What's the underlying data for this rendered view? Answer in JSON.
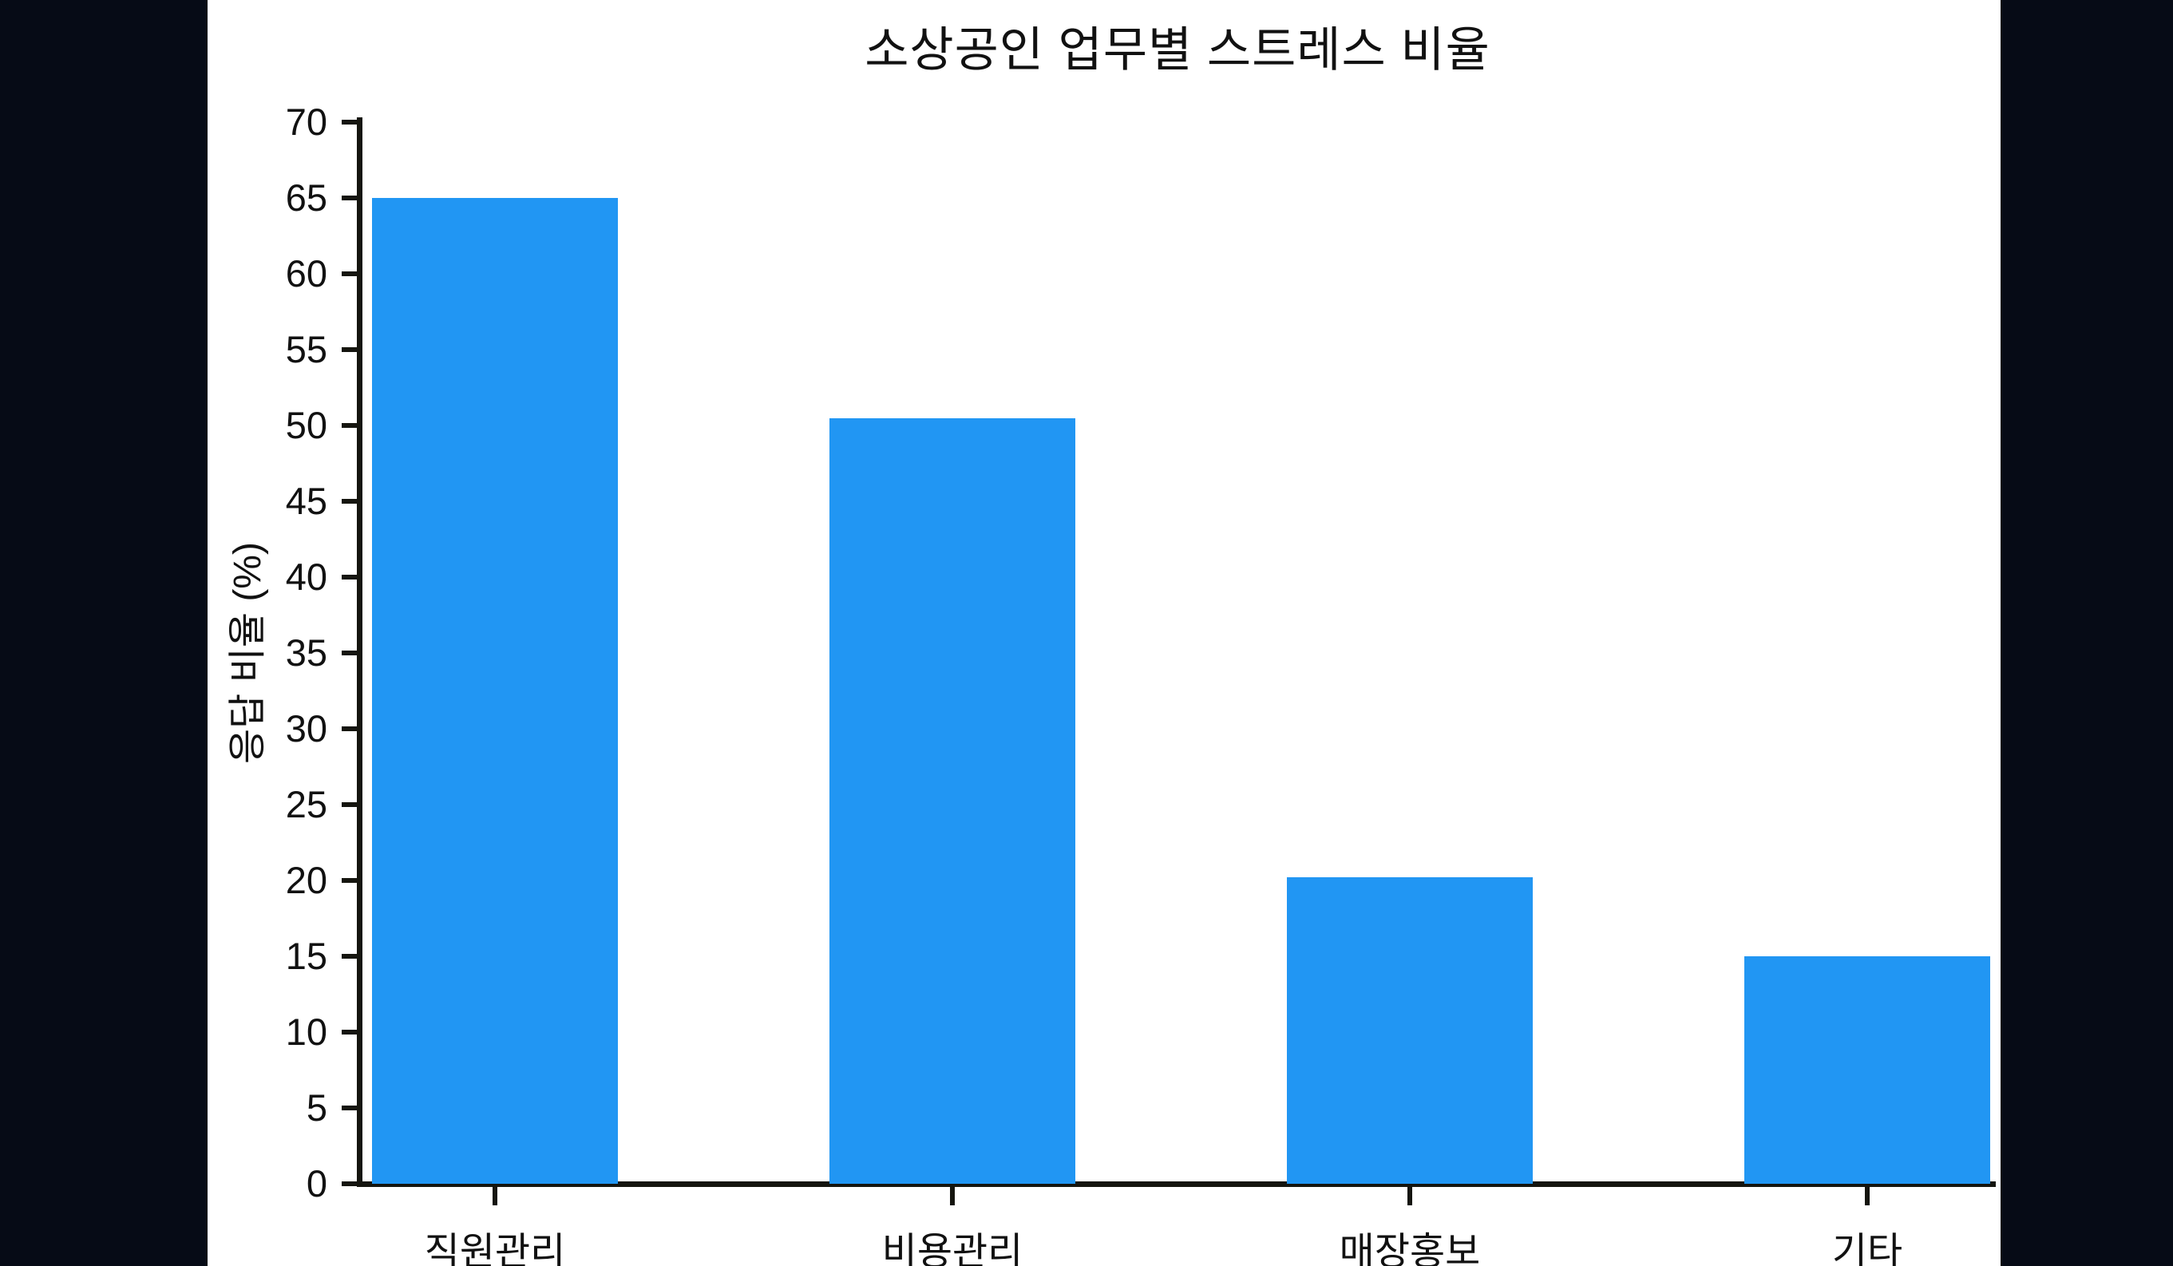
{
  "page": {
    "letterbox_color": "#060b16",
    "figure_background": "#ffffff"
  },
  "chart_data": {
    "type": "bar",
    "title": "소상공인 업무별 스트레스 비율",
    "xlabel": "",
    "ylabel": "응답 비율 (%)",
    "categories": [
      "직원관리",
      "비용관리",
      "매장홍보",
      "기타"
    ],
    "values": [
      65,
      50.5,
      20.2,
      15
    ],
    "ylim": [
      0,
      70
    ],
    "yticks": [
      0,
      5,
      10,
      15,
      20,
      25,
      30,
      35,
      40,
      45,
      50,
      55,
      60,
      65,
      70
    ],
    "bar_color": "#2196F3",
    "axis_color": "#15150f",
    "text_color": "#111111",
    "grid": false,
    "legend": null
  }
}
